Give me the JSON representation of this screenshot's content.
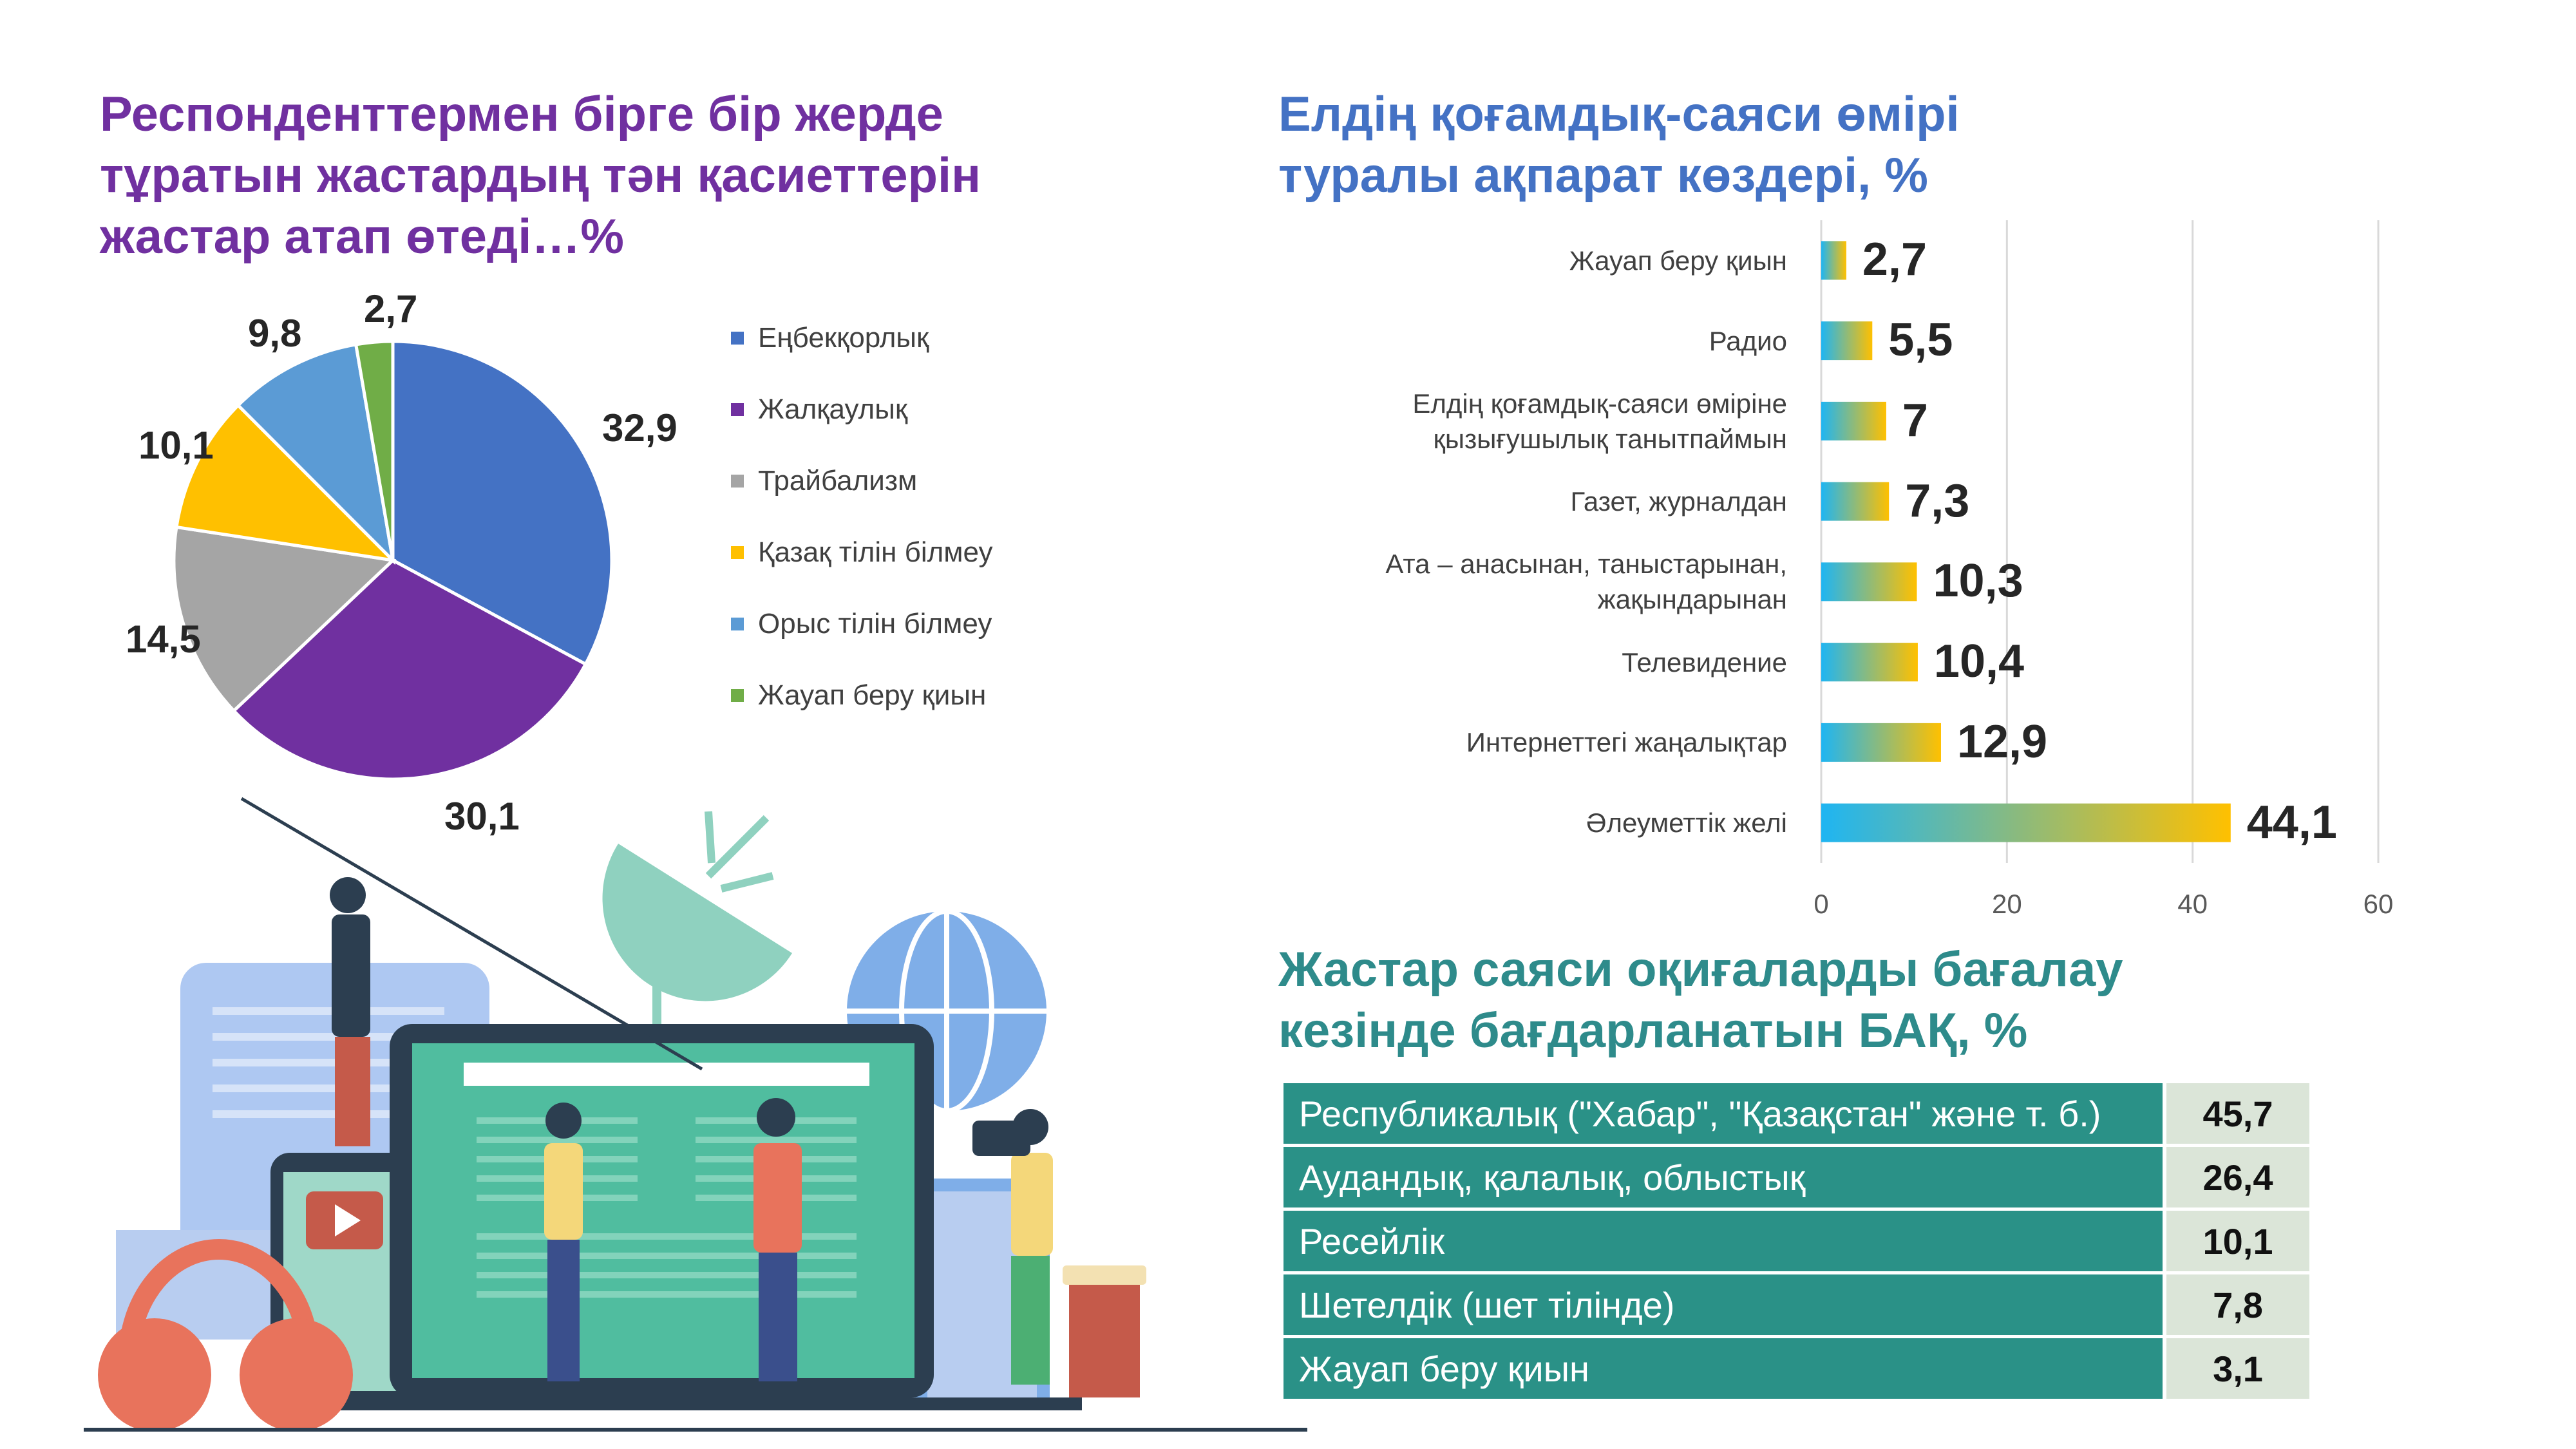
{
  "pie": {
    "title_line1": "Респонденттермен бірге бір жерде",
    "title_line2": "тұратын жастардың тән қасиеттерін",
    "title_line3": "жастар атап өтеді…%"
  },
  "bar": {
    "title_line1": "Елдің қоғамдық-саяси өмірі",
    "title_line2": "туралы ақпарат көздері, %"
  },
  "table": {
    "title_line1": "Жастар саяси оқиғаларды бағалау",
    "title_line2": "кезінде бағдарланатын БАҚ, %"
  },
  "chart_data": [
    {
      "type": "pie",
      "title": "Респонденттермен бірге бір жерде тұратын жастардың тән қасиеттерін жастар атап өтеді…%",
      "categories": [
        "Еңбекқорлық",
        "Жалқаулық",
        "Трайбализм",
        "Қазақ тілін білмеу",
        "Орыс тілін білмеу",
        "Жауап беру қиын"
      ],
      "values": [
        32.9,
        30.1,
        14.5,
        10.1,
        9.8,
        2.7
      ],
      "labels": [
        "32,9",
        "30,1",
        "14,5",
        "10,1",
        "9,8",
        "2,7"
      ],
      "colors": [
        "#4472c4",
        "#7030a0",
        "#a5a5a5",
        "#ffc000",
        "#5b9bd5",
        "#70ad47"
      ],
      "legend": "right"
    },
    {
      "type": "bar",
      "orientation": "horizontal",
      "title": "Елдің қоғамдық-саяси өмірі туралы ақпарат көздері, %",
      "categories": [
        [
          "Жауап беру қиын"
        ],
        [
          "Радио"
        ],
        [
          "Елдің қоғамдық-саяси өміріне",
          "қызығушылық танытпаймын"
        ],
        [
          "Газет, журналдан"
        ],
        [
          "Ата – анасынан, таныстарынан,",
          "жақындарынан"
        ],
        [
          "Телевидение"
        ],
        [
          "Интернеттегі жаңалықтар"
        ],
        [
          "Әлеуметтік желі"
        ]
      ],
      "values": [
        2.7,
        5.5,
        7,
        7.3,
        10.3,
        10.4,
        12.9,
        44.1
      ],
      "labels": [
        "2,7",
        "5,5",
        "7",
        "7,3",
        "10,3",
        "10,4",
        "12,9",
        "44,1"
      ],
      "xlim": [
        0,
        60
      ],
      "xticks": [
        "0",
        "20",
        "40",
        "60"
      ],
      "grid": true,
      "colors": [
        "#1fb5f2",
        "#ffc000"
      ]
    },
    {
      "type": "table",
      "title": "Жастар саяси оқиғаларды бағалау кезінде бағдарланатын БАҚ, %",
      "rows": [
        {
          "label": "Республикалық (\"Хабар\", \"Қазақстан\" және т. б.)",
          "value": "45,7"
        },
        {
          "label": "Аудандық, қалалық, облыстық",
          "value": "26,4"
        },
        {
          "label": "Ресейлік",
          "value": "10,1"
        },
        {
          "label": "Шетелдік (шет тілінде)",
          "value": "7,8"
        },
        {
          "label": "Жауап беру қиын",
          "value": "3,1"
        }
      ]
    }
  ]
}
